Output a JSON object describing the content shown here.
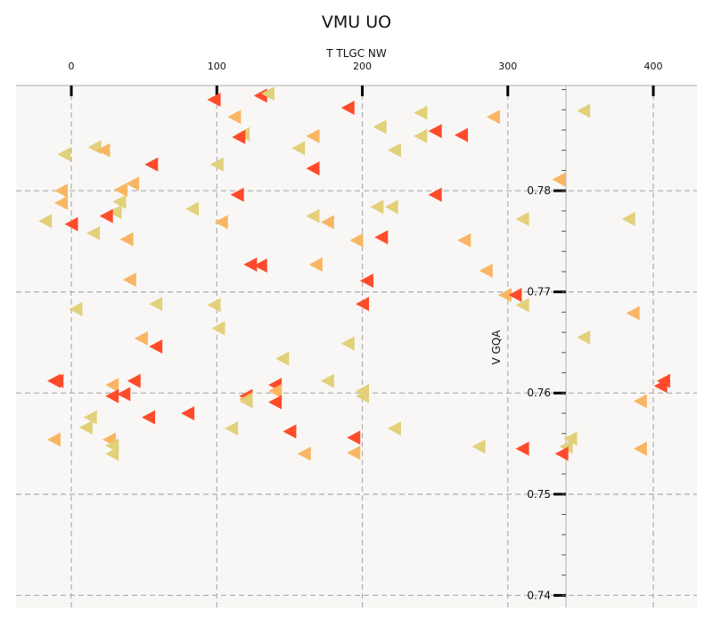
{
  "chart_data": {
    "type": "scatter",
    "title": "VMU UO",
    "xlabel": "T  TLGC NW",
    "ylabel": "V GQA",
    "xlim": [
      -38,
      430
    ],
    "ylim": [
      0.7388,
      0.7904
    ],
    "x_ticks": [
      0,
      100,
      200,
      300,
      400
    ],
    "x_tick_labels": [
      "0",
      "100",
      "200",
      "300",
      "400"
    ],
    "y_ticks": [
      0.74,
      0.75,
      0.76,
      0.77,
      0.78
    ],
    "y_tick_labels": [
      "0.74",
      "0.75",
      "0.76",
      "0.77",
      "0.78"
    ],
    "grid": true,
    "x_axis_position": "top",
    "y_axis_position": "x=340",
    "marker": "triangle-left",
    "colors": {
      "red": "#ff4b2b",
      "orange": "#f9b662",
      "yellow": "#e2d07a",
      "background": "#f8f7f5",
      "grid": "#b3b3b3"
    },
    "points": [
      {
        "x": 98,
        "y": 0.789,
        "c": "red"
      },
      {
        "x": 130,
        "y": 0.7894,
        "c": "red"
      },
      {
        "x": 135,
        "y": 0.7896,
        "c": "yellow"
      },
      {
        "x": 190,
        "y": 0.7882,
        "c": "red"
      },
      {
        "x": 240,
        "y": 0.7877,
        "c": "yellow"
      },
      {
        "x": 290,
        "y": 0.7873,
        "c": "orange"
      },
      {
        "x": 352,
        "y": 0.7879,
        "c": "yellow"
      },
      {
        "x": 112,
        "y": 0.7873,
        "c": "orange"
      },
      {
        "x": 212,
        "y": 0.7863,
        "c": "yellow"
      },
      {
        "x": 250,
        "y": 0.7859,
        "c": "red"
      },
      {
        "x": 268,
        "y": 0.7855,
        "c": "red"
      },
      {
        "x": 240,
        "y": 0.7854,
        "c": "yellow"
      },
      {
        "x": 118,
        "y": 0.7856,
        "c": "yellow"
      },
      {
        "x": 115,
        "y": 0.7853,
        "c": "red"
      },
      {
        "x": 166,
        "y": 0.7854,
        "c": "orange"
      },
      {
        "x": 16,
        "y": 0.7843,
        "c": "yellow"
      },
      {
        "x": 22,
        "y": 0.784,
        "c": "orange"
      },
      {
        "x": -5,
        "y": 0.7836,
        "c": "yellow"
      },
      {
        "x": 156,
        "y": 0.7842,
        "c": "yellow"
      },
      {
        "x": 222,
        "y": 0.784,
        "c": "yellow"
      },
      {
        "x": 55,
        "y": 0.7826,
        "c": "red"
      },
      {
        "x": 100,
        "y": 0.7826,
        "c": "yellow"
      },
      {
        "x": 166,
        "y": 0.7822,
        "c": "red"
      },
      {
        "x": 42,
        "y": 0.7807,
        "c": "orange"
      },
      {
        "x": 335,
        "y": 0.7811,
        "c": "orange"
      },
      {
        "x": -7,
        "y": 0.78,
        "c": "orange"
      },
      {
        "x": 34,
        "y": 0.7801,
        "c": "orange"
      },
      {
        "x": 114,
        "y": 0.7796,
        "c": "red"
      },
      {
        "x": 250,
        "y": 0.7796,
        "c": "red"
      },
      {
        "x": -7,
        "y": 0.7788,
        "c": "orange"
      },
      {
        "x": 33,
        "y": 0.7789,
        "c": "yellow"
      },
      {
        "x": 210,
        "y": 0.7784,
        "c": "yellow"
      },
      {
        "x": 220,
        "y": 0.7784,
        "c": "yellow"
      },
      {
        "x": 83,
        "y": 0.7782,
        "c": "yellow"
      },
      {
        "x": 30,
        "y": 0.7779,
        "c": "yellow"
      },
      {
        "x": 24,
        "y": 0.7775,
        "c": "red"
      },
      {
        "x": 166,
        "y": 0.7775,
        "c": "yellow"
      },
      {
        "x": 310,
        "y": 0.7772,
        "c": "yellow"
      },
      {
        "x": 383,
        "y": 0.7772,
        "c": "yellow"
      },
      {
        "x": -18,
        "y": 0.777,
        "c": "yellow"
      },
      {
        "x": 0,
        "y": 0.7767,
        "c": "red"
      },
      {
        "x": 103,
        "y": 0.7769,
        "c": "orange"
      },
      {
        "x": 176,
        "y": 0.7769,
        "c": "orange"
      },
      {
        "x": 15,
        "y": 0.7758,
        "c": "yellow"
      },
      {
        "x": 38,
        "y": 0.7752,
        "c": "orange"
      },
      {
        "x": 213,
        "y": 0.7754,
        "c": "red"
      },
      {
        "x": 270,
        "y": 0.7751,
        "c": "orange"
      },
      {
        "x": 196,
        "y": 0.7751,
        "c": "orange"
      },
      {
        "x": 123,
        "y": 0.7727,
        "c": "red"
      },
      {
        "x": 130,
        "y": 0.7726,
        "c": "red"
      },
      {
        "x": 168,
        "y": 0.7727,
        "c": "orange"
      },
      {
        "x": 285,
        "y": 0.7721,
        "c": "orange"
      },
      {
        "x": 40,
        "y": 0.7712,
        "c": "orange"
      },
      {
        "x": 203,
        "y": 0.7711,
        "c": "red"
      },
      {
        "x": 298,
        "y": 0.7697,
        "c": "orange"
      },
      {
        "x": 305,
        "y": 0.7697,
        "c": "red"
      },
      {
        "x": 58,
        "y": 0.7688,
        "c": "yellow"
      },
      {
        "x": 98,
        "y": 0.7687,
        "c": "yellow"
      },
      {
        "x": 200,
        "y": 0.7688,
        "c": "red"
      },
      {
        "x": 310,
        "y": 0.7687,
        "c": "yellow"
      },
      {
        "x": 3,
        "y": 0.7683,
        "c": "yellow"
      },
      {
        "x": 386,
        "y": 0.7679,
        "c": "orange"
      },
      {
        "x": 101,
        "y": 0.7664,
        "c": "yellow"
      },
      {
        "x": 48,
        "y": 0.7654,
        "c": "orange"
      },
      {
        "x": 352,
        "y": 0.7655,
        "c": "yellow"
      },
      {
        "x": 58,
        "y": 0.7646,
        "c": "red"
      },
      {
        "x": 145,
        "y": 0.7634,
        "c": "yellow"
      },
      {
        "x": 190,
        "y": 0.7649,
        "c": "yellow"
      },
      {
        "x": -12,
        "y": 0.7612,
        "c": "red"
      },
      {
        "x": -10,
        "y": 0.7612,
        "c": "red"
      },
      {
        "x": 43,
        "y": 0.7612,
        "c": "red"
      },
      {
        "x": 176,
        "y": 0.7612,
        "c": "yellow"
      },
      {
        "x": 407,
        "y": 0.7612,
        "c": "red"
      },
      {
        "x": 28,
        "y": 0.7608,
        "c": "orange"
      },
      {
        "x": 140,
        "y": 0.7608,
        "c": "red"
      },
      {
        "x": 405,
        "y": 0.7607,
        "c": "red"
      },
      {
        "x": 140,
        "y": 0.7602,
        "c": "orange"
      },
      {
        "x": 200,
        "y": 0.7602,
        "c": "yellow"
      },
      {
        "x": 36,
        "y": 0.7599,
        "c": "red"
      },
      {
        "x": 28,
        "y": 0.7597,
        "c": "red"
      },
      {
        "x": 120,
        "y": 0.7597,
        "c": "red"
      },
      {
        "x": 200,
        "y": 0.7597,
        "c": "yellow"
      },
      {
        "x": 120,
        "y": 0.7594,
        "c": "orange"
      },
      {
        "x": 120,
        "y": 0.7592,
        "c": "yellow"
      },
      {
        "x": 391,
        "y": 0.7592,
        "c": "orange"
      },
      {
        "x": 140,
        "y": 0.7591,
        "c": "red"
      },
      {
        "x": 80,
        "y": 0.758,
        "c": "red"
      },
      {
        "x": 13,
        "y": 0.7576,
        "c": "yellow"
      },
      {
        "x": 53,
        "y": 0.7576,
        "c": "red"
      },
      {
        "x": 10,
        "y": 0.7566,
        "c": "yellow"
      },
      {
        "x": 110,
        "y": 0.7565,
        "c": "yellow"
      },
      {
        "x": 150,
        "y": 0.7562,
        "c": "red"
      },
      {
        "x": 222,
        "y": 0.7565,
        "c": "yellow"
      },
      {
        "x": -12,
        "y": 0.7554,
        "c": "orange"
      },
      {
        "x": 26,
        "y": 0.7554,
        "c": "orange"
      },
      {
        "x": 194,
        "y": 0.7556,
        "c": "red"
      },
      {
        "x": 343,
        "y": 0.7555,
        "c": "yellow"
      },
      {
        "x": 28,
        "y": 0.7548,
        "c": "yellow"
      },
      {
        "x": 280,
        "y": 0.7547,
        "c": "yellow"
      },
      {
        "x": 340,
        "y": 0.7547,
        "c": "yellow"
      },
      {
        "x": 310,
        "y": 0.7545,
        "c": "red"
      },
      {
        "x": 391,
        "y": 0.7545,
        "c": "orange"
      },
      {
        "x": 28,
        "y": 0.754,
        "c": "yellow"
      },
      {
        "x": 160,
        "y": 0.754,
        "c": "orange"
      },
      {
        "x": 194,
        "y": 0.7541,
        "c": "orange"
      },
      {
        "x": 337,
        "y": 0.754,
        "c": "red"
      }
    ]
  }
}
